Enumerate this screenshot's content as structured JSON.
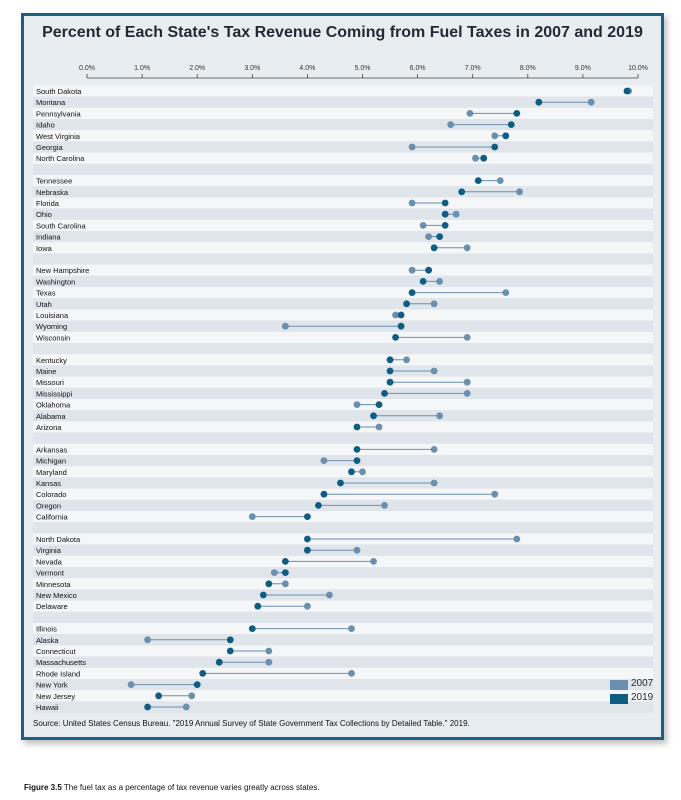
{
  "chart_data": {
    "type": "dumbbell",
    "title": "Percent of Each State's Tax Revenue Coming from Fuel Taxes in 2007 and 2019",
    "xlim": [
      0,
      10
    ],
    "x_ticks": [
      "0.0%",
      "1.0%",
      "2.0%",
      "3.0%",
      "4.0%",
      "5.0%",
      "6.0%",
      "7.0%",
      "8.0%",
      "9.0%",
      "10.0%"
    ],
    "series": [
      {
        "name": "2007",
        "color": "#6b8fae"
      },
      {
        "name": "2019",
        "color": "#0f5d82"
      }
    ],
    "groups": [
      [
        {
          "state": "South Dakota",
          "v2007": 9.83,
          "v2019": 9.8
        },
        {
          "state": "Montana",
          "v2007": 9.15,
          "v2019": 8.2
        },
        {
          "state": "Pennsylvania",
          "v2007": 6.95,
          "v2019": 7.8
        },
        {
          "state": "Idaho",
          "v2007": 6.6,
          "v2019": 7.7
        },
        {
          "state": "West Virginia",
          "v2007": 7.4,
          "v2019": 7.6
        },
        {
          "state": "Georgia",
          "v2007": 5.9,
          "v2019": 7.4
        },
        {
          "state": "North Carolina",
          "v2007": 7.05,
          "v2019": 7.2
        }
      ],
      [
        {
          "state": "Tennessee",
          "v2007": 7.5,
          "v2019": 7.1
        },
        {
          "state": "Nebraska",
          "v2007": 7.85,
          "v2019": 6.8
        },
        {
          "state": "Florida",
          "v2007": 5.9,
          "v2019": 6.5
        },
        {
          "state": "Ohio",
          "v2007": 6.7,
          "v2019": 6.5
        },
        {
          "state": "South Carolina",
          "v2007": 6.1,
          "v2019": 6.5
        },
        {
          "state": "Indiana",
          "v2007": 6.2,
          "v2019": 6.4
        },
        {
          "state": "Iowa",
          "v2007": 6.9,
          "v2019": 6.3
        }
      ],
      [
        {
          "state": "New Hampshire",
          "v2007": 5.9,
          "v2019": 6.2
        },
        {
          "state": "Washington",
          "v2007": 6.4,
          "v2019": 6.1
        },
        {
          "state": "Texas",
          "v2007": 7.6,
          "v2019": 5.9
        },
        {
          "state": "Utah",
          "v2007": 6.3,
          "v2019": 5.8
        },
        {
          "state": "Louisiana",
          "v2007": 5.6,
          "v2019": 5.7
        },
        {
          "state": "Wyoming",
          "v2007": 3.6,
          "v2019": 5.7
        },
        {
          "state": "Wisconsin",
          "v2007": 6.9,
          "v2019": 5.6
        }
      ],
      [
        {
          "state": "Kentucky",
          "v2007": 5.8,
          "v2019": 5.5
        },
        {
          "state": "Maine",
          "v2007": 6.3,
          "v2019": 5.5
        },
        {
          "state": "Missouri",
          "v2007": 6.9,
          "v2019": 5.5
        },
        {
          "state": "Mississippi",
          "v2007": 6.9,
          "v2019": 5.4
        },
        {
          "state": "Oklahoma",
          "v2007": 4.9,
          "v2019": 5.3
        },
        {
          "state": "Alabama",
          "v2007": 6.4,
          "v2019": 5.2
        },
        {
          "state": "Arizona",
          "v2007": 5.3,
          "v2019": 4.9
        }
      ],
      [
        {
          "state": "Arkansas",
          "v2007": 6.3,
          "v2019": 4.9
        },
        {
          "state": "Michigan",
          "v2007": 4.3,
          "v2019": 4.9
        },
        {
          "state": "Maryland",
          "v2007": 5.0,
          "v2019": 4.8
        },
        {
          "state": "Kansas",
          "v2007": 6.3,
          "v2019": 4.6
        },
        {
          "state": "Colorado",
          "v2007": 7.4,
          "v2019": 4.3
        },
        {
          "state": "Oregon",
          "v2007": 5.4,
          "v2019": 4.2
        },
        {
          "state": "California",
          "v2007": 3.0,
          "v2019": 4.0
        }
      ],
      [
        {
          "state": "North Dakota",
          "v2007": 7.8,
          "v2019": 4.0
        },
        {
          "state": "Virginia",
          "v2007": 4.9,
          "v2019": 4.0
        },
        {
          "state": "Nevada",
          "v2007": 5.2,
          "v2019": 3.6
        },
        {
          "state": "Vermont",
          "v2007": 3.4,
          "v2019": 3.6
        },
        {
          "state": "Minnesota",
          "v2007": 3.6,
          "v2019": 3.3
        },
        {
          "state": "New Mexico",
          "v2007": 4.4,
          "v2019": 3.2
        },
        {
          "state": "Delaware",
          "v2007": 4.0,
          "v2019": 3.1
        }
      ],
      [
        {
          "state": "Illinois",
          "v2007": 4.8,
          "v2019": 3.0
        },
        {
          "state": "Alaska",
          "v2007": 1.1,
          "v2019": 2.6
        },
        {
          "state": "Connecticut",
          "v2007": 3.3,
          "v2019": 2.6
        },
        {
          "state": "Massachusetts",
          "v2007": 3.3,
          "v2019": 2.4
        },
        {
          "state": "Rhode Island",
          "v2007": 4.8,
          "v2019": 2.1
        },
        {
          "state": "New York",
          "v2007": 0.8,
          "v2019": 2.0
        },
        {
          "state": "New Jersey",
          "v2007": 1.9,
          "v2019": 1.3
        },
        {
          "state": "Hawaii",
          "v2007": 1.8,
          "v2019": 1.1
        }
      ]
    ],
    "legend": [
      "2007",
      "2019"
    ],
    "legend_position": "bottom-right",
    "source": "Source: United States Census Bureau. \"2019 Annual Survey of State Government Tax Collections by Detailed Table.\" 2019."
  },
  "caption": {
    "label": "Figure 3.5",
    "text": "The fuel tax as a percentage of tax revenue varies greatly across states."
  }
}
